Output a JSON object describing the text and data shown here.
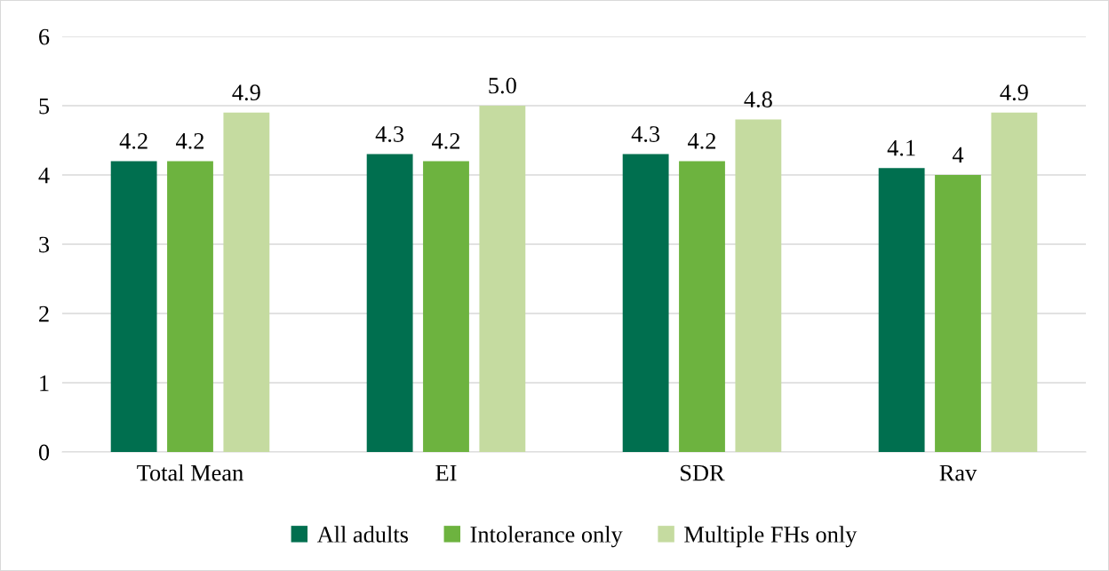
{
  "chart_data": {
    "type": "bar",
    "categories": [
      "Total Mean",
      "EI",
      "SDR",
      "Rav"
    ],
    "series": [
      {
        "name": "All adults",
        "color": "#006f4f",
        "values": [
          4.2,
          4.3,
          4.3,
          4.1
        ],
        "value_labels": [
          "4.2",
          "4.3",
          "4.3",
          "4.1"
        ]
      },
      {
        "name": "Intolerance only",
        "color": "#6db33f",
        "values": [
          4.2,
          4.2,
          4.2,
          4
        ],
        "value_labels": [
          "4.2",
          "4.2",
          "4.2",
          "4"
        ]
      },
      {
        "name": "Multiple FHs only",
        "color": "#c5dba0",
        "values": [
          4.9,
          5.0,
          4.8,
          4.9
        ],
        "value_labels": [
          "4.9",
          "5.0",
          "4.8",
          "4.9"
        ]
      }
    ],
    "ylim": [
      0,
      6
    ],
    "yticks": [
      0,
      1,
      2,
      3,
      4,
      5,
      6
    ],
    "grid": "y",
    "legend": "bottom"
  }
}
